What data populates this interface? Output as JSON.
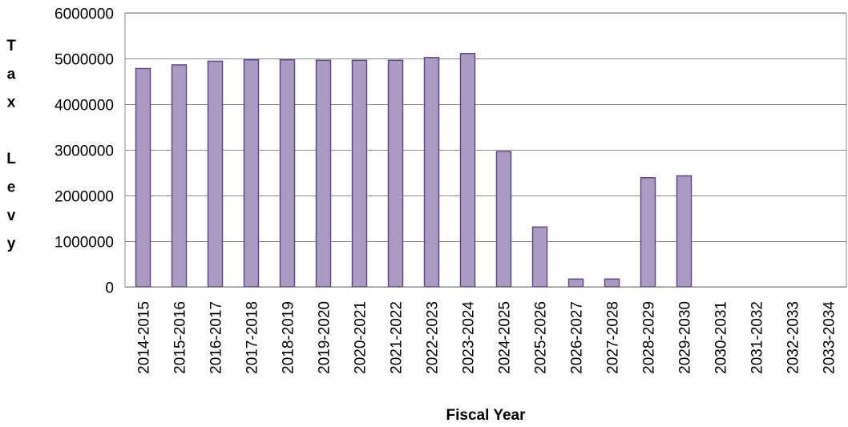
{
  "chart_data": {
    "type": "bar",
    "title": "",
    "xlabel": "Fiscal Year",
    "ylabel": "Tax Levy",
    "ylim": [
      0,
      6000000
    ],
    "y_ticks": [
      0,
      1000000,
      2000000,
      3000000,
      4000000,
      5000000,
      6000000
    ],
    "grid": true,
    "legend": "none",
    "categories": [
      "2014-2015",
      "2015-2016",
      "2016-2017",
      "2017-2018",
      "2018-2019",
      "2019-2020",
      "2020-2021",
      "2021-2022",
      "2022-2023",
      "2023-2024",
      "2024-2025",
      "2025-2026",
      "2026-2027",
      "2027-2028",
      "2028-2029",
      "2029-2030",
      "2030-2031",
      "2031-2032",
      "2032-2033",
      "2033-2034"
    ],
    "values": [
      4780000,
      4860000,
      4940000,
      4970000,
      4970000,
      4960000,
      4960000,
      4960000,
      5020000,
      5110000,
      2960000,
      1310000,
      170000,
      170000,
      2390000,
      2430000,
      0,
      0,
      0,
      0
    ],
    "colors": {
      "bar_fill": "#a99bc2",
      "bar_stroke": "#5e4a87",
      "grid": "#8c8c8c",
      "plot_border": "#8c8c8c"
    }
  }
}
